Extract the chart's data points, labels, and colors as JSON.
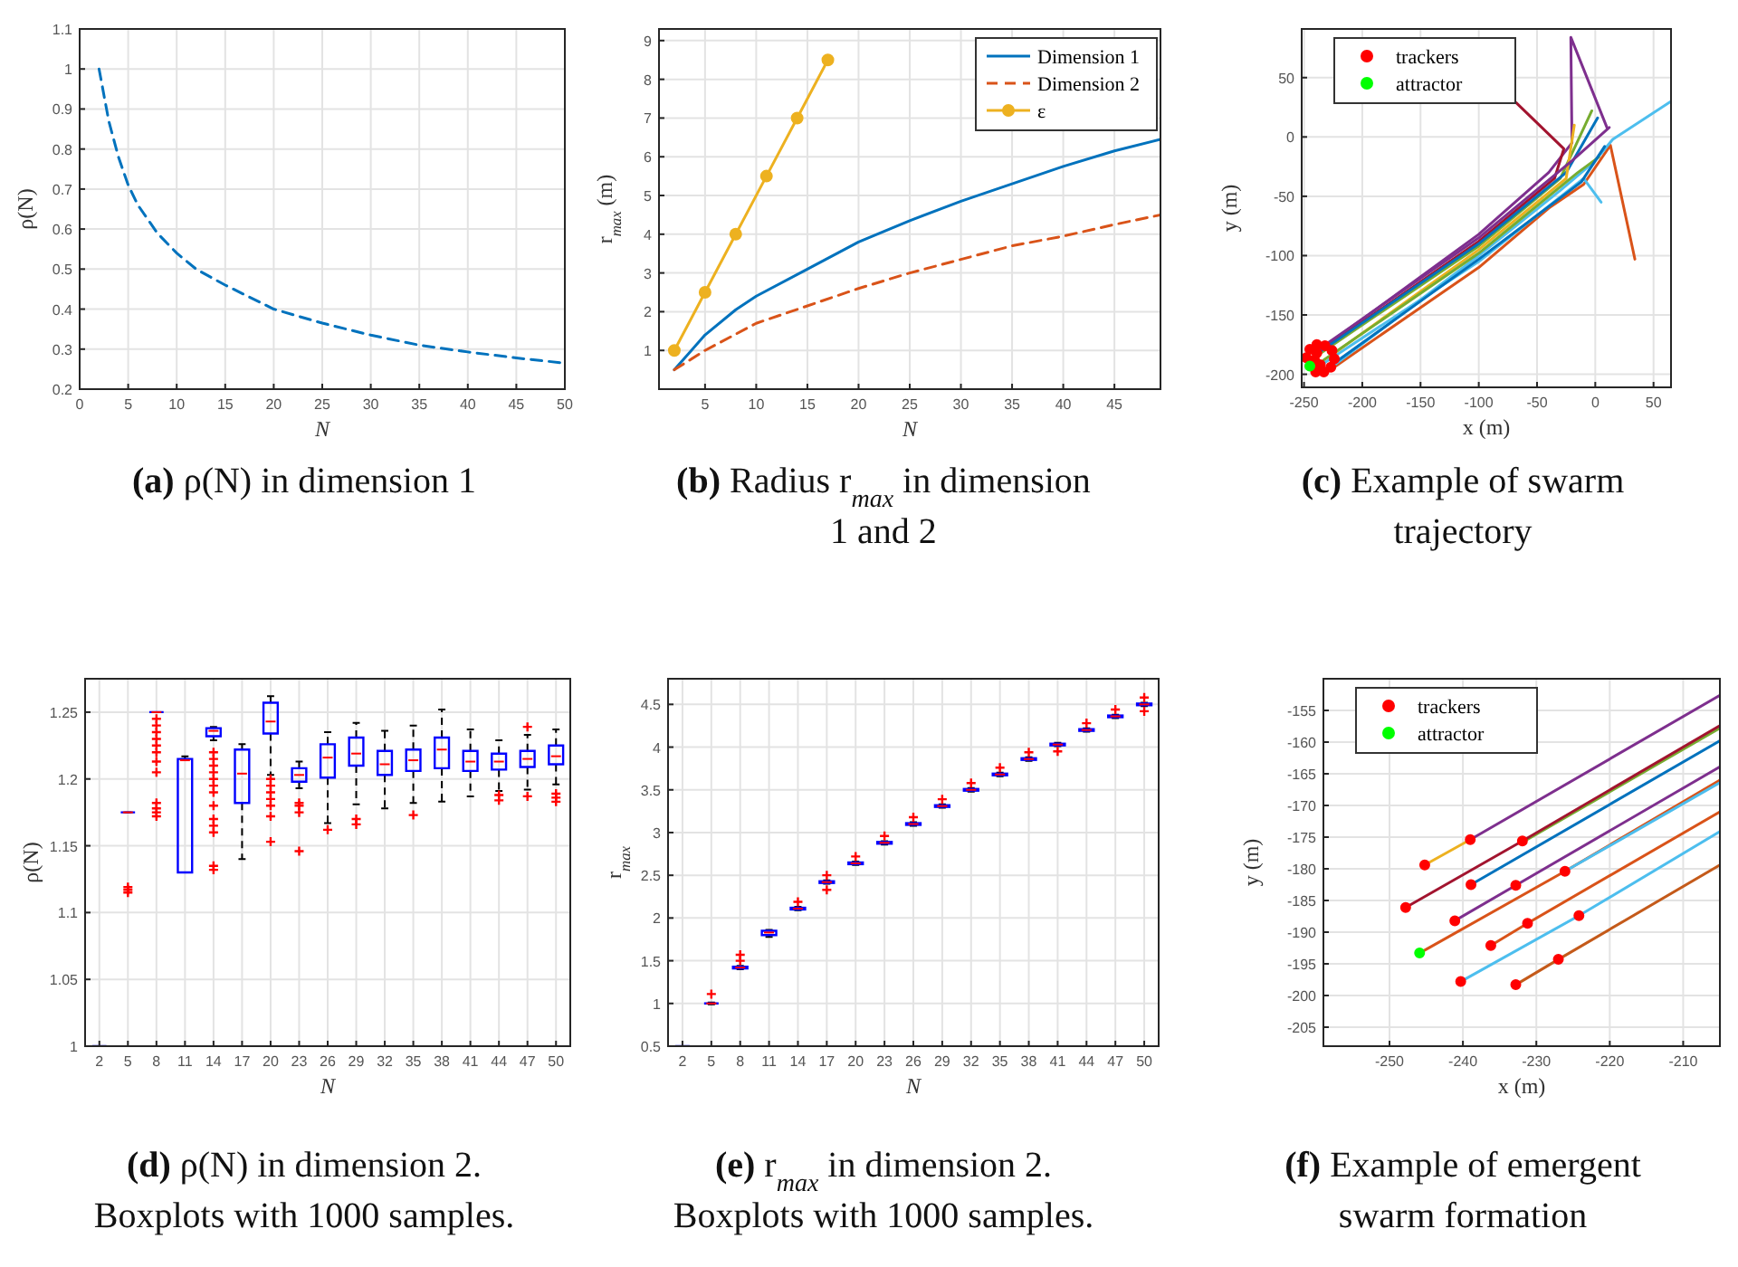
{
  "chart_data": [
    {
      "type": "line",
      "title": "(a) ρ(N) in dimension 1",
      "xlabel": "N",
      "ylabel": "ρ(N)",
      "xlim": [
        0,
        50
      ],
      "xticks": [
        0,
        5,
        10,
        15,
        20,
        25,
        30,
        35,
        40,
        45,
        50
      ],
      "ylim": [
        0.2,
        1.1
      ],
      "yticks": [
        0.2,
        0.3,
        0.4,
        0.5,
        0.6,
        0.7,
        0.8,
        0.9,
        1,
        1.1
      ],
      "grid": true,
      "line_style": "dashed",
      "series": [
        {
          "color": "#0072bd",
          "x": [
            2,
            3,
            4,
            5,
            6,
            8,
            10,
            12,
            15,
            20,
            25,
            30,
            35,
            40,
            45,
            50
          ],
          "values": [
            1,
            0.87,
            0.78,
            0.71,
            0.66,
            0.59,
            0.54,
            0.5,
            0.46,
            0.4,
            0.365,
            0.335,
            0.31,
            0.293,
            0.278,
            0.265
          ]
        }
      ]
    },
    {
      "type": "line",
      "title": "(b) Radius r$_{max}$ in dimension 1 and 2",
      "xlabel": "N",
      "ylabel": "r$_{max}$ (m)",
      "xlim": [
        0.5,
        49.5
      ],
      "xticks": [
        5,
        10,
        15,
        20,
        25,
        30,
        35,
        40,
        45
      ],
      "ylim": [
        0,
        9.3
      ],
      "yticks": [
        1,
        2,
        3,
        4,
        5,
        6,
        7,
        8,
        9
      ],
      "grid": true,
      "legend": "top right",
      "series": [
        {
          "name": "Dimension 1",
          "color": "#0072bd",
          "line_style": "solid",
          "marker": "none",
          "x": [
            2,
            5,
            8,
            10,
            15,
            20,
            25,
            30,
            35,
            40,
            45,
            49.5
          ],
          "values": [
            0.5,
            1.4,
            2.05,
            2.4,
            3.1,
            3.8,
            4.35,
            4.85,
            5.3,
            5.75,
            6.15,
            6.45
          ]
        },
        {
          "name": "Dimension 2",
          "color": "#d95319",
          "line_style": "dashed",
          "marker": "none",
          "x": [
            2,
            5,
            10,
            15,
            20,
            25,
            30,
            35,
            40,
            45,
            49.5
          ],
          "values": [
            0.5,
            1.0,
            1.7,
            2.15,
            2.6,
            3.0,
            3.35,
            3.7,
            3.95,
            4.25,
            4.5
          ]
        },
        {
          "name": "ε",
          "color": "#edb120",
          "line_style": "solid",
          "marker": "circle",
          "x": [
            2,
            5,
            8,
            11,
            14,
            17
          ],
          "values": [
            1,
            2.5,
            4,
            5.5,
            7,
            8.5
          ]
        }
      ]
    },
    {
      "type": "line",
      "title": "(c) Example of swarm trajectory",
      "xlabel": "x (m)",
      "ylabel": "y (m)",
      "xlim": [
        -252,
        65
      ],
      "xticks": [
        -250,
        -200,
        -150,
        -100,
        -50,
        0,
        50
      ],
      "ylim": [
        -211,
        91
      ],
      "yticks": [
        -200,
        -150,
        -100,
        -50,
        0,
        50
      ],
      "grid": true,
      "legend": "top left",
      "series": [
        {
          "color": "#7e2f8e",
          "x": [
            -230,
            -100,
            -40,
            -20,
            -21,
            10
          ],
          "values": [
            -175,
            -82,
            -30,
            -5,
            84,
            8
          ]
        },
        {
          "color": "#a2142f",
          "x": [
            -235,
            -100,
            -35,
            -27,
            -68
          ],
          "values": [
            -180,
            -88,
            -35,
            -10,
            29
          ]
        },
        {
          "color": "#d95319",
          "x": [
            -230,
            -100,
            -40,
            -10,
            13,
            34
          ],
          "values": [
            -198,
            -110,
            -60,
            -40,
            -7,
            -103
          ]
        },
        {
          "color": "#4dbeee",
          "x": [
            -225,
            -100,
            -30,
            0,
            15,
            65
          ],
          "values": [
            -193,
            -100,
            -45,
            -20,
            -2,
            30
          ]
        },
        {
          "color": "#4dbeee",
          "x": [
            -232,
            -100,
            -10,
            5
          ],
          "values": [
            -190,
            -105,
            -35,
            -55
          ]
        },
        {
          "color": "#77ac30",
          "x": [
            -240,
            -100,
            -30,
            -3
          ],
          "values": [
            -185,
            -92,
            -35,
            22
          ]
        },
        {
          "color": "#0072bd",
          "x": [
            -238,
            -100,
            -25,
            2
          ],
          "values": [
            -182,
            -90,
            -30,
            16
          ]
        },
        {
          "color": "#edb120",
          "x": [
            -228,
            -100,
            -25,
            -18
          ],
          "values": [
            -185,
            -95,
            -35,
            10
          ]
        },
        {
          "color": "#7e2f8e",
          "x": [
            -236,
            -100,
            -20,
            12
          ],
          "values": [
            -178,
            -85,
            -20,
            8
          ]
        },
        {
          "color": "#77ac30",
          "x": [
            -233,
            -100,
            -15,
            3
          ],
          "values": [
            -188,
            -98,
            -30,
            -17
          ]
        },
        {
          "color": "#0072bd",
          "x": [
            -226,
            -100,
            -12,
            8
          ],
          "values": [
            -192,
            -103,
            -38,
            -8
          ]
        },
        {
          "name": "trackers",
          "type": "scatter",
          "color": "#ff0000",
          "marker": "circle",
          "x": [
            -245,
            -239,
            -232,
            -248,
            -239,
            -241,
            -226,
            -236,
            -224,
            -240,
            -233,
            -227
          ],
          "values": [
            -179,
            -175,
            -176,
            -186,
            -182,
            -188,
            -180,
            -192,
            -187,
            -198,
            -198,
            -194
          ]
        },
        {
          "name": "attractor",
          "type": "scatter",
          "color": "#00ff00",
          "marker": "circle",
          "x": [
            -245
          ],
          "values": [
            -193
          ]
        }
      ]
    },
    {
      "type": "box",
      "title": "(d) ρ(N) in dimension 2. Boxplots with 1000 samples.",
      "xlabel": "N",
      "ylabel": "ρ(N)",
      "categories": [
        "2",
        "5",
        "8",
        "11",
        "14",
        "17",
        "20",
        "23",
        "26",
        "29",
        "32",
        "35",
        "38",
        "41",
        "44",
        "47",
        "50"
      ],
      "ylim": [
        1,
        1.275
      ],
      "yticks": [
        1,
        1.05,
        1.1,
        1.15,
        1.2,
        1.25
      ],
      "grid": true,
      "series": [
        {
          "color": "#0000ff",
          "boxes": [
            {
              "low": 1,
              "q1": 1,
              "median": 1,
              "q3": 1,
              "high": 1
            },
            {
              "low": 1.175,
              "q1": 1.175,
              "median": 1.175,
              "q3": 1.175,
              "high": 1.175,
              "outliers": [
                1.115,
                1.117,
                1.119
              ]
            },
            {
              "low": 1.25,
              "q1": 1.25,
              "median": 1.25,
              "q3": 1.25,
              "high": 1.25,
              "outliers": [
                1.172,
                1.175,
                1.178,
                1.182,
                1.205,
                1.213,
                1.22,
                1.225,
                1.23,
                1.235,
                1.24,
                1.245
              ]
            },
            {
              "low": 1.13,
              "q1": 1.13,
              "median": 1.214,
              "q3": 1.215,
              "high": 1.217
            },
            {
              "low": 1.229,
              "q1": 1.232,
              "median": 1.236,
              "q3": 1.238,
              "high": 1.239,
              "outliers": [
                1.132,
                1.135,
                1.16,
                1.165,
                1.17,
                1.18,
                1.19,
                1.195,
                1.2,
                1.205,
                1.21,
                1.215,
                1.22
              ]
            },
            {
              "low": 1.14,
              "q1": 1.182,
              "median": 1.204,
              "q3": 1.222,
              "high": 1.226
            },
            {
              "low": 1.203,
              "q1": 1.234,
              "median": 1.243,
              "q3": 1.257,
              "high": 1.262,
              "outliers": [
                1.153,
                1.172,
                1.18,
                1.185,
                1.19,
                1.195,
                1.2
              ]
            },
            {
              "low": 1.193,
              "q1": 1.198,
              "median": 1.203,
              "q3": 1.208,
              "high": 1.213,
              "outliers": [
                1.146,
                1.175,
                1.18,
                1.182
              ]
            },
            {
              "low": 1.167,
              "q1": 1.201,
              "median": 1.216,
              "q3": 1.226,
              "high": 1.235,
              "outliers": [
                1.162
              ]
            },
            {
              "low": 1.181,
              "q1": 1.21,
              "median": 1.219,
              "q3": 1.231,
              "high": 1.242,
              "outliers": [
                1.166,
                1.17
              ]
            },
            {
              "low": 1.178,
              "q1": 1.203,
              "median": 1.211,
              "q3": 1.221,
              "high": 1.236
            },
            {
              "low": 1.182,
              "q1": 1.206,
              "median": 1.214,
              "q3": 1.222,
              "high": 1.24,
              "outliers": [
                1.173
              ]
            },
            {
              "low": 1.183,
              "q1": 1.208,
              "median": 1.222,
              "q3": 1.231,
              "high": 1.252
            },
            {
              "low": 1.187,
              "q1": 1.206,
              "median": 1.213,
              "q3": 1.221,
              "high": 1.237
            },
            {
              "low": 1.191,
              "q1": 1.207,
              "median": 1.213,
              "q3": 1.219,
              "high": 1.229,
              "outliers": [
                1.184,
                1.188
              ]
            },
            {
              "low": 1.192,
              "q1": 1.209,
              "median": 1.215,
              "q3": 1.221,
              "high": 1.233,
              "outliers": [
                1.187,
                1.239
              ]
            },
            {
              "low": 1.196,
              "q1": 1.211,
              "median": 1.217,
              "q3": 1.225,
              "high": 1.237,
              "outliers": [
                1.183,
                1.186,
                1.189
              ]
            }
          ]
        }
      ]
    },
    {
      "type": "box",
      "title": "(e) r$_{max}$ in dimension 2. Boxplots with 1000 samples.",
      "xlabel": "N",
      "ylabel": "r$_{max}$",
      "categories": [
        "2",
        "5",
        "8",
        "11",
        "14",
        "17",
        "20",
        "23",
        "26",
        "29",
        "32",
        "35",
        "38",
        "41",
        "44",
        "47",
        "50"
      ],
      "ylim": [
        0.5,
        4.8
      ],
      "yticks": [
        0.5,
        1,
        1.5,
        2,
        2.5,
        3,
        3.5,
        4,
        4.5
      ],
      "grid": true,
      "series": [
        {
          "color": "#0000ff",
          "boxes": [
            {
              "low": 0.5,
              "q1": 0.5,
              "median": 0.5,
              "q3": 0.5,
              "high": 0.5
            },
            {
              "low": 0.99,
              "q1": 1,
              "median": 1,
              "q3": 1,
              "high": 1.01,
              "outliers": [
                1.11
              ]
            },
            {
              "low": 1.4,
              "q1": 1.41,
              "median": 1.42,
              "q3": 1.43,
              "high": 1.44,
              "outliers": [
                1.5,
                1.57
              ]
            },
            {
              "low": 1.78,
              "q1": 1.8,
              "median": 1.83,
              "q3": 1.85,
              "high": 1.86
            },
            {
              "low": 2.09,
              "q1": 2.1,
              "median": 2.11,
              "q3": 2.12,
              "high": 2.13,
              "outliers": [
                2.19
              ]
            },
            {
              "low": 2.4,
              "q1": 2.41,
              "median": 2.42,
              "q3": 2.43,
              "high": 2.44,
              "outliers": [
                2.33,
                2.5
              ]
            },
            {
              "low": 2.62,
              "q1": 2.63,
              "median": 2.64,
              "q3": 2.65,
              "high": 2.66,
              "outliers": [
                2.72
              ]
            },
            {
              "low": 2.86,
              "q1": 2.87,
              "median": 2.88,
              "q3": 2.89,
              "high": 2.9,
              "outliers": [
                2.96
              ]
            },
            {
              "low": 3.08,
              "q1": 3.09,
              "median": 3.1,
              "q3": 3.11,
              "high": 3.12,
              "outliers": [
                3.18
              ]
            },
            {
              "low": 3.29,
              "q1": 3.3,
              "median": 3.31,
              "q3": 3.32,
              "high": 3.33,
              "outliers": [
                3.39
              ]
            },
            {
              "low": 3.48,
              "q1": 3.49,
              "median": 3.5,
              "q3": 3.51,
              "high": 3.52,
              "outliers": [
                3.58
              ]
            },
            {
              "low": 3.66,
              "q1": 3.67,
              "median": 3.68,
              "q3": 3.69,
              "high": 3.7,
              "outliers": [
                3.76
              ]
            },
            {
              "low": 3.84,
              "q1": 3.85,
              "median": 3.86,
              "q3": 3.87,
              "high": 3.88,
              "outliers": [
                3.94
              ]
            },
            {
              "low": 4.01,
              "q1": 4.02,
              "median": 4.03,
              "q3": 4.04,
              "high": 4.05,
              "outliers": [
                3.95
              ]
            },
            {
              "low": 4.18,
              "q1": 4.19,
              "median": 4.2,
              "q3": 4.21,
              "high": 4.22,
              "outliers": [
                4.28
              ]
            },
            {
              "low": 4.34,
              "q1": 4.35,
              "median": 4.36,
              "q3": 4.37,
              "high": 4.38,
              "outliers": [
                4.44
              ]
            },
            {
              "low": 4.48,
              "q1": 4.49,
              "median": 4.5,
              "q3": 4.51,
              "high": 4.52,
              "outliers": [
                4.42,
                4.58
              ]
            }
          ]
        }
      ]
    },
    {
      "type": "line",
      "title": "(f) Example of emergent swarm formation",
      "xlabel": "x (m)",
      "ylabel": "y (m)",
      "xlim": [
        -259,
        -205
      ],
      "xticks": [
        -250,
        -240,
        -230,
        -220,
        -210
      ],
      "ylim": [
        -208,
        -150
      ],
      "yticks": [
        -205,
        -200,
        -195,
        -190,
        -185,
        -180,
        -175,
        -170,
        -165,
        -160,
        -155
      ],
      "grid": true,
      "legend": "top left",
      "series": [
        {
          "color": "#edb120",
          "x": [
            -245.2,
            -239
          ],
          "values": [
            -179.4,
            -175.4
          ]
        },
        {
          "color": "#7e2f8e",
          "x": [
            -239,
            -205
          ],
          "values": [
            -175.4,
            -152.6
          ]
        },
        {
          "color": "#77ac30",
          "x": [
            -231.9,
            -205
          ],
          "values": [
            -175.8,
            -157.8
          ]
        },
        {
          "color": "#a2142f",
          "x": [
            -247.8,
            -231.9,
            -205
          ],
          "values": [
            -186.1,
            -175.6,
            -157.4
          ]
        },
        {
          "color": "#0072bd",
          "x": [
            -238.9,
            -205
          ],
          "values": [
            -182.5,
            -159.8
          ]
        },
        {
          "color": "#7e2f8e",
          "x": [
            -241.1,
            -232.8,
            -205
          ],
          "values": [
            -188.2,
            -182.6,
            -163.9
          ]
        },
        {
          "color": "#d95319",
          "x": [
            -245.9,
            -226.1,
            -205
          ],
          "values": [
            -193.3,
            -180.4,
            -166
          ]
        },
        {
          "color": "#4dbeee",
          "x": [
            -226.1,
            -205
          ],
          "values": [
            -180.4,
            -166.4
          ]
        },
        {
          "color": "#d95319",
          "x": [
            -236.2,
            -231.2,
            -205
          ],
          "values": [
            -192.1,
            -188.6,
            -171
          ]
        },
        {
          "color": "#4dbeee",
          "x": [
            -240.3,
            -224.2,
            -205
          ],
          "values": [
            -197.8,
            -187.4,
            -174.1
          ]
        },
        {
          "color": "#c45a1a",
          "x": [
            -232.8,
            -227,
            -205
          ],
          "values": [
            -198.3,
            -194.3,
            -179.4
          ]
        },
        {
          "name": "trackers",
          "type": "scatter",
          "color": "#ff0000",
          "marker": "circle",
          "x": [
            -245.2,
            -239,
            -231.9,
            -247.8,
            -238.9,
            -232.8,
            -241.1,
            -226.1,
            -236.2,
            -231.2,
            -224.2,
            -240.3,
            -232.8,
            -227
          ],
          "values": [
            -179.4,
            -175.4,
            -175.6,
            -186.1,
            -182.5,
            -182.6,
            -188.2,
            -180.4,
            -192.1,
            -188.6,
            -187.4,
            -197.8,
            -198.3,
            -194.3
          ]
        },
        {
          "name": "attractor",
          "type": "scatter",
          "color": "#00ff00",
          "marker": "circle",
          "x": [
            -245.9
          ],
          "values": [
            -193.3
          ]
        }
      ]
    }
  ]
}
